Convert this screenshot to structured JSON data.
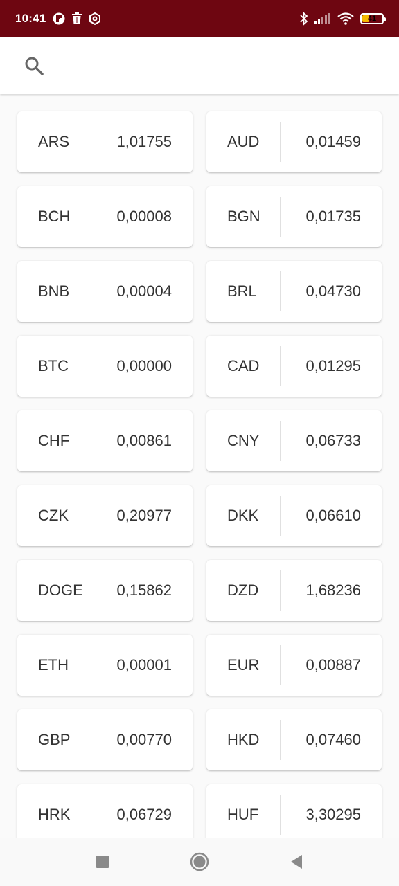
{
  "status_bar": {
    "time": "10:41",
    "battery_level": "41",
    "battery_fraction": 0.41,
    "left_icons": [
      "flipboard-icon",
      "trash-icon",
      "settings-hex-icon"
    ],
    "right_icons": [
      "bluetooth-icon",
      "signal-icon",
      "wifi-icon",
      "battery-icon"
    ],
    "color": "#6e0611"
  },
  "search": {
    "placeholder": "",
    "value": ""
  },
  "rates": [
    {
      "code": "ARS",
      "value": "1,01755"
    },
    {
      "code": "AUD",
      "value": "0,01459"
    },
    {
      "code": "BCH",
      "value": "0,00008"
    },
    {
      "code": "BGN",
      "value": "0,01735"
    },
    {
      "code": "BNB",
      "value": "0,00004"
    },
    {
      "code": "BRL",
      "value": "0,04730"
    },
    {
      "code": "BTC",
      "value": "0,00000"
    },
    {
      "code": "CAD",
      "value": "0,01295"
    },
    {
      "code": "CHF",
      "value": "0,00861"
    },
    {
      "code": "CNY",
      "value": "0,06733"
    },
    {
      "code": "CZK",
      "value": "0,20977"
    },
    {
      "code": "DKK",
      "value": "0,06610"
    },
    {
      "code": "DOGE",
      "value": "0,15862"
    },
    {
      "code": "DZD",
      "value": "1,68236"
    },
    {
      "code": "ETH",
      "value": "0,00001"
    },
    {
      "code": "EUR",
      "value": "0,00887"
    },
    {
      "code": "GBP",
      "value": "0,00770"
    },
    {
      "code": "HKD",
      "value": "0,07460"
    },
    {
      "code": "HRK",
      "value": "0,06729"
    },
    {
      "code": "HUF",
      "value": "3,30295"
    }
  ],
  "nav": {
    "buttons": [
      "recents-square-icon",
      "home-circle-icon",
      "back-triangle-icon"
    ]
  }
}
